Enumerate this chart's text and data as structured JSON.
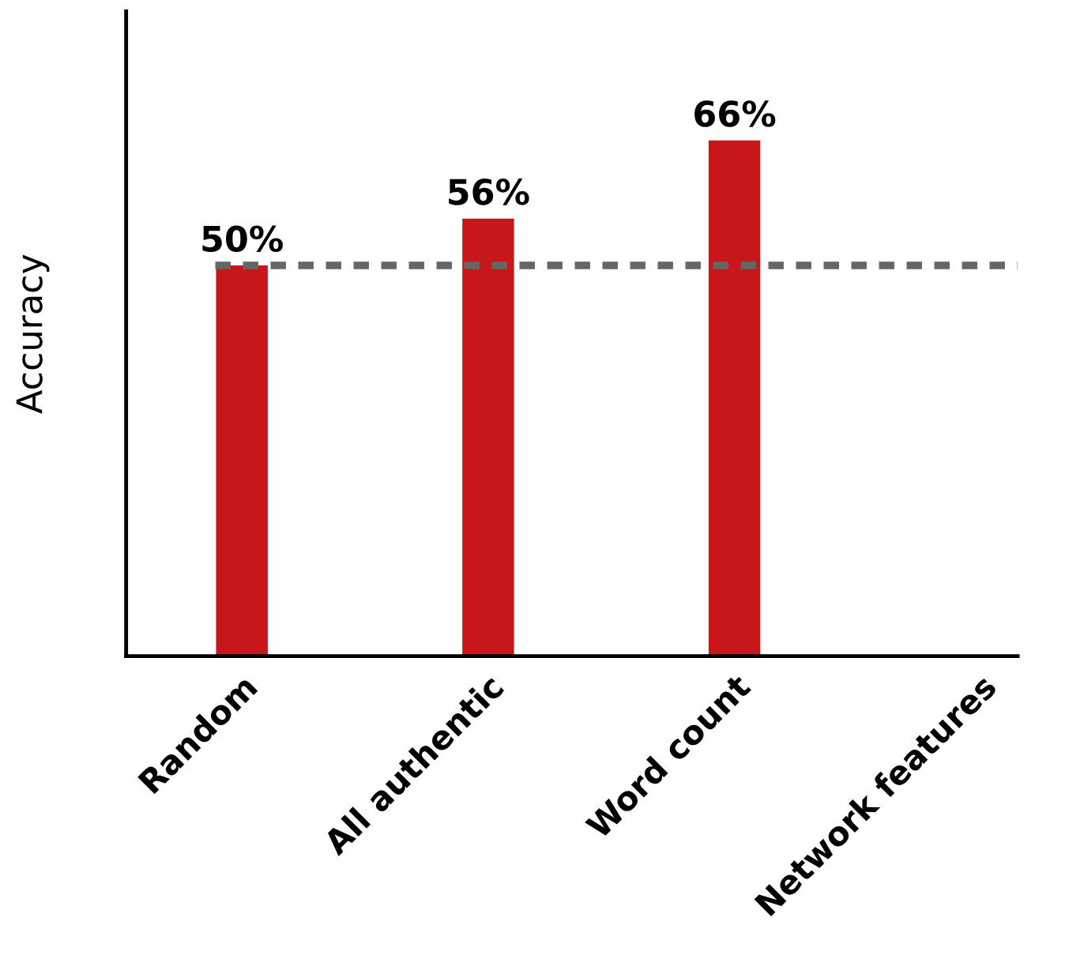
{
  "chart_data": {
    "type": "bar",
    "ylabel": "Accuracy",
    "categories": [
      "Random",
      "All authentic",
      "Word count",
      "Network features"
    ],
    "values": [
      50,
      56,
      66,
      null
    ],
    "value_labels": [
      "50%",
      "56%",
      "66%",
      null
    ],
    "color": "#c8171b",
    "tick_labels": "x",
    "grid": false,
    "ref_lines": [
      {
        "axis": "y",
        "value": 50,
        "color": "#666666",
        "line_style": "dashed"
      }
    ]
  }
}
